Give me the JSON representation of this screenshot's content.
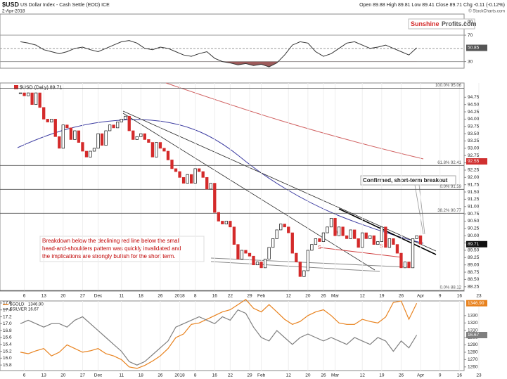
{
  "header": {
    "symbol": "$USD",
    "name": "US Dollar Index - Cash Settle (EOD) ICE",
    "date": "2-Apr-2018",
    "quote": "Open 89.88 High 89.81 Low 89.41 Close 89.71 Chg -0.11 (-0.12%)",
    "credit": "© StockCharts.com"
  },
  "logo": {
    "part1": "Sunshine",
    "part2": "Profits.com"
  },
  "chart_data": [
    {
      "type": "line",
      "color": "#333333",
      "fill_color": "#9c5a5a",
      "xlim": [
        -3,
        119
      ],
      "ylim": [
        20,
        102
      ],
      "yticks": [
        90,
        70,
        30
      ],
      "levels": [
        70,
        50,
        30
      ],
      "fill_below": 30,
      "x": [
        -1,
        1,
        3,
        5,
        7,
        9,
        11,
        13,
        15,
        17,
        19,
        21,
        23,
        25,
        27,
        29,
        31,
        33,
        35,
        37,
        39,
        41,
        43,
        45,
        47,
        49,
        51,
        53,
        55,
        57,
        59,
        61,
        63,
        65,
        67,
        69,
        71,
        73,
        75,
        77,
        79,
        81,
        83,
        85,
        87,
        89,
        91,
        93,
        95,
        97,
        99,
        101
      ],
      "values": [
        60,
        58,
        55,
        48,
        45,
        42,
        45,
        50,
        52,
        48,
        45,
        50,
        55,
        60,
        62,
        58,
        50,
        48,
        52,
        50,
        45,
        40,
        38,
        42,
        45,
        35,
        30,
        28,
        25,
        27,
        24,
        26,
        22,
        28,
        40,
        55,
        60,
        58,
        45,
        38,
        42,
        50,
        58,
        60,
        55,
        50,
        52,
        55,
        50,
        45,
        40,
        50.85
      ]
    },
    {
      "type": "candlestick",
      "legend": "$USD (Daily) 89.71",
      "up_color": "#ffffff",
      "down_color": "#d42a2a",
      "xlim": [
        -3,
        119
      ],
      "ylim": [
        88.1,
        95.24
      ],
      "xticks": [
        {
          "value": 0,
          "label": "6"
        },
        {
          "value": 5,
          "label": "13"
        },
        {
          "value": 10,
          "label": "20"
        },
        {
          "value": 15,
          "label": "27"
        },
        {
          "value": 19,
          "label": "Dec"
        },
        {
          "value": 25,
          "label": "11"
        },
        {
          "value": 30,
          "label": "18"
        },
        {
          "value": 35,
          "label": "26"
        },
        {
          "value": 40,
          "label": "2018"
        },
        {
          "value": 44,
          "label": "8"
        },
        {
          "value": 49,
          "label": "16"
        },
        {
          "value": 53,
          "label": "22"
        },
        {
          "value": 58,
          "label": "29"
        },
        {
          "value": 61,
          "label": "Feb"
        },
        {
          "value": 68,
          "label": "12"
        },
        {
          "value": 73,
          "label": "20"
        },
        {
          "value": 77,
          "label": "26"
        },
        {
          "value": 80,
          "label": "Mar"
        },
        {
          "value": 87,
          "label": "12"
        },
        {
          "value": 92,
          "label": "19"
        },
        {
          "value": 97,
          "label": "26"
        },
        {
          "value": 102,
          "label": "Apr"
        },
        {
          "value": 107,
          "label": "9"
        },
        {
          "value": 112,
          "label": "16"
        },
        {
          "value": 117,
          "label": "23"
        }
      ],
      "yticks": [
        88.25,
        {
          "value": 88.5,
          "label": "88.50"
        },
        88.75,
        {
          "value": 89,
          "label": "89.00"
        },
        89.25,
        {
          "value": 89.5,
          "label": "89.50"
        },
        89.75,
        {
          "value": 90,
          "label": "90.00"
        },
        90.25,
        {
          "value": 90.5,
          "label": "90.50"
        },
        90.75,
        {
          "value": 91,
          "label": "91.00"
        },
        91.25,
        {
          "value": 91.5,
          "label": "91.50"
        },
        91.75,
        {
          "value": 92,
          "label": "92.00"
        },
        92.25,
        {
          "value": 92.5,
          "label": "92.50"
        },
        92.75,
        {
          "value": 93,
          "label": "93.00"
        },
        93.25,
        {
          "value": 93.5,
          "label": "93.50"
        },
        93.75,
        {
          "value": 94,
          "label": "94.00"
        },
        94.25,
        {
          "value": 94.5,
          "label": "94.50"
        },
        94.75
      ],
      "fib_levels": [
        {
          "label": "100.0% 95.06",
          "value": 95.06
        },
        {
          "label": "61.8% 92.41",
          "value": 92.41
        },
        {
          "label": "0.0% 91.59",
          "value": 91.59
        },
        {
          "label": "38.2% 90.77",
          "value": 90.77
        },
        {
          "label": "0.0% 88.12",
          "value": 88.12
        }
      ],
      "markers": [
        {
          "value": 92.55,
          "color": "#d03030"
        },
        {
          "value": 89.71,
          "color": "#111111"
        }
      ],
      "annotations": [
        [
          "Breakdown below the declining red line below the small",
          "head-and-shoulders pattern was quickly invalidated and",
          "the implications are strongly bullish for the short term."
        ],
        "Confirmed, short-term breakout"
      ],
      "pattern_labels": [
        "S",
        "h",
        "S"
      ],
      "x": [
        -1,
        0,
        1,
        2,
        3,
        4,
        5,
        6,
        7,
        8,
        9,
        10,
        11,
        12,
        13,
        14,
        15,
        16,
        17,
        18,
        19,
        20,
        21,
        22,
        23,
        24,
        25,
        26,
        27,
        28,
        29,
        30,
        31,
        32,
        33,
        34,
        35,
        36,
        37,
        38,
        39,
        40,
        41,
        42,
        43,
        44,
        45,
        46,
        47,
        48,
        49,
        50,
        51,
        52,
        53,
        54,
        55,
        56,
        57,
        58,
        59,
        60,
        61,
        62,
        63,
        64,
        65,
        66,
        67,
        68,
        69,
        70,
        71,
        72,
        73,
        74,
        75,
        76,
        77,
        78,
        79,
        80,
        81,
        82,
        83,
        84,
        85,
        86,
        87,
        88,
        89,
        90,
        91,
        92,
        93,
        94,
        95,
        96,
        97,
        98,
        99,
        100,
        101,
        102
      ],
      "close": [
        94.9,
        94.8,
        94.9,
        94.5,
        94.9,
        94.4,
        94.0,
        93.9,
        94.0,
        93.4,
        93.0,
        93.8,
        93.7,
        93.3,
        93.6,
        93.2,
        92.9,
        92.7,
        92.9,
        93.0,
        93.5,
        93.1,
        93.6,
        93.8,
        93.7,
        93.9,
        94.0,
        94.1,
        93.6,
        93.3,
        93.4,
        93.5,
        93.3,
        93.2,
        92.7,
        93.2,
        93.0,
        92.9,
        92.6,
        92.3,
        92.2,
        92.0,
        91.8,
        92.1,
        91.8,
        92.3,
        92.2,
        92.0,
        91.6,
        91.8,
        90.8,
        90.5,
        90.4,
        90.5,
        90.3,
        89.7,
        89.2,
        89.5,
        89.4,
        89.3,
        89.0,
        89.1,
        88.9,
        89.2,
        89.6,
        89.9,
        90.2,
        90.4,
        90.3,
        90.1,
        89.4,
        89.1,
        88.6,
        88.8,
        89.5,
        89.7,
        89.9,
        89.8,
        90.1,
        90.3,
        90.6,
        90.0,
        90.3,
        90.0,
        89.9,
        90.2,
        89.9,
        89.6,
        90.1,
        89.9,
        90.0,
        89.7,
        89.8,
        90.3,
        89.6,
        89.9,
        89.7,
        89.4,
        88.9,
        89.1,
        88.9,
        89.9,
        90.0,
        89.71
      ]
    },
    {
      "type": "line",
      "xlim": [
        -3,
        119
      ],
      "ylim": [
        15.64,
        17.66
      ],
      "y2lim": [
        1255,
        1350
      ],
      "xticks": [
        {
          "value": 0,
          "label": "6"
        },
        {
          "value": 5,
          "label": "13"
        },
        {
          "value": 10,
          "label": "20"
        },
        {
          "value": 15,
          "label": "27"
        },
        {
          "value": 19,
          "label": "Dec"
        },
        {
          "value": 25,
          "label": "11"
        },
        {
          "value": 30,
          "label": "18"
        },
        {
          "value": 35,
          "label": "26"
        },
        {
          "value": 40,
          "label": "2018"
        },
        {
          "value": 44,
          "label": "8"
        },
        {
          "value": 49,
          "label": "16"
        },
        {
          "value": 53,
          "label": "22"
        },
        {
          "value": 58,
          "label": "29"
        },
        {
          "value": 61,
          "label": "Feb"
        },
        {
          "value": 68,
          "label": "12"
        },
        {
          "value": 73,
          "label": "20"
        },
        {
          "value": 77,
          "label": "26"
        },
        {
          "value": 80,
          "label": "Mar"
        },
        {
          "value": 87,
          "label": "12"
        },
        {
          "value": 92,
          "label": "19"
        },
        {
          "value": 97,
          "label": "26"
        },
        {
          "value": 102,
          "label": "Apr"
        },
        {
          "value": 107,
          "label": "9"
        },
        {
          "value": 112,
          "label": "16"
        },
        {
          "value": 117,
          "label": "23"
        }
      ],
      "yticks": [
        17.6,
        17.4,
        17.2,
        {
          "value": 17,
          "label": "17.0"
        },
        16.8,
        16.6,
        16.4,
        16.2,
        {
          "value": 16,
          "label": "16.0"
        },
        15.8
      ],
      "y2ticks": [
        1330,
        1320,
        1310,
        1300,
        1290,
        1280,
        1270,
        1260
      ],
      "x": [
        -1,
        1,
        3,
        5,
        7,
        9,
        11,
        13,
        15,
        17,
        19,
        21,
        23,
        25,
        27,
        29,
        31,
        33,
        35,
        37,
        39,
        41,
        43,
        45,
        47,
        49,
        51,
        53,
        55,
        57,
        59,
        61,
        63,
        65,
        67,
        69,
        71,
        73,
        75,
        77,
        79,
        81,
        83,
        85,
        87,
        89,
        91,
        93,
        95,
        97,
        99,
        101
      ],
      "series": [
        {
          "name": "$GOLD",
          "color": "#e8821e",
          "axis": "y2",
          "last_label": "1346.90",
          "values": [
            1280,
            1278,
            1282,
            1285,
            1275,
            1280,
            1290,
            1285,
            1280,
            1282,
            1285,
            1278,
            1275,
            1270,
            1260,
            1258,
            1262,
            1268,
            1275,
            1285,
            1300,
            1305,
            1318,
            1320,
            1325,
            1330,
            1335,
            1338,
            1345,
            1352,
            1340,
            1335,
            1345,
            1335,
            1325,
            1318,
            1322,
            1330,
            1335,
            1338,
            1330,
            1320,
            1318,
            1318,
            1325,
            1322,
            1320,
            1328,
            1348,
            1350,
            1325,
            1346.9
          ]
        },
        {
          "name": "$SILVER",
          "color": "#7f7f7f",
          "values": [
            17.0,
            17.1,
            17.0,
            16.9,
            17.0,
            17.0,
            16.9,
            17.1,
            17.2,
            17.0,
            16.8,
            16.6,
            16.4,
            16.2,
            15.9,
            15.8,
            15.9,
            16.1,
            16.3,
            16.5,
            16.9,
            17.0,
            17.1,
            17.2,
            17.1,
            17.0,
            17.2,
            17.1,
            17.4,
            17.3,
            16.9,
            16.6,
            16.5,
            16.8,
            16.6,
            16.4,
            16.6,
            16.7,
            16.6,
            16.5,
            16.6,
            16.5,
            16.4,
            16.6,
            16.5,
            16.4,
            16.6,
            16.5,
            16.2,
            16.5,
            16.3,
            16.67
          ]
        }
      ]
    }
  ]
}
